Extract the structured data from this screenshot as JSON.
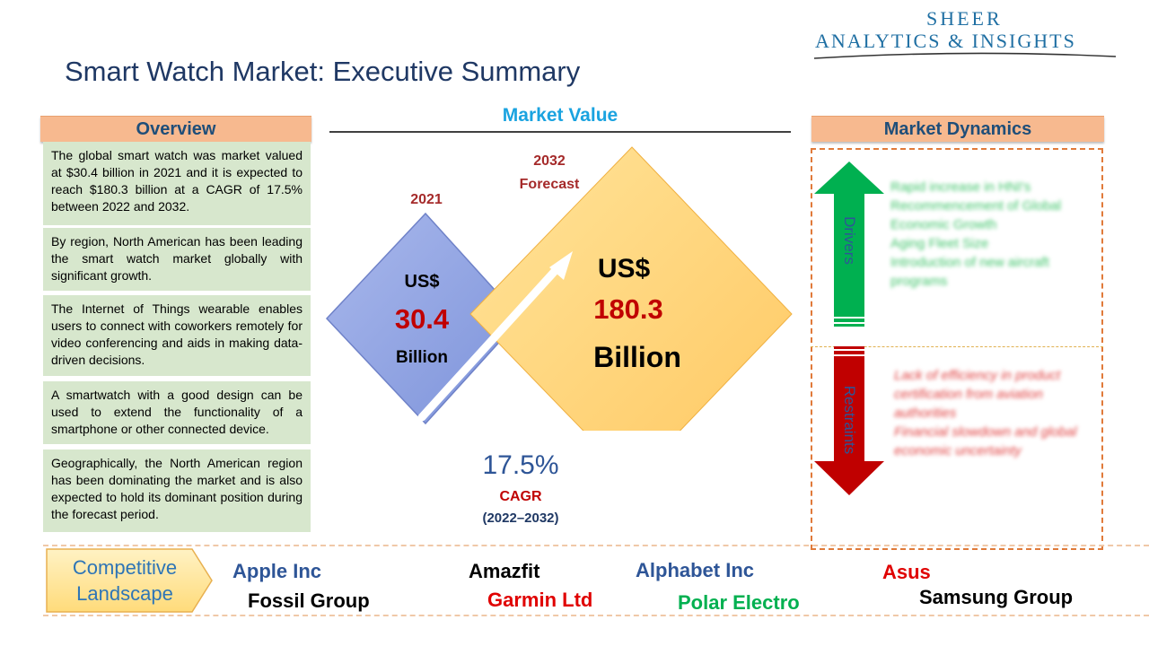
{
  "logo": {
    "line1": "SHEER",
    "line2": "ANALYTICS & INSIGHTS"
  },
  "title": "Smart Watch Market: Executive Summary",
  "overview": {
    "heading": "Overview",
    "paragraphs": [
      "The global smart watch was market valued at $30.4 billion in 2021 and it is expected to reach $180.3 billion at a CAGR of 17.5% between 2022 and 2032.",
      "By region, North American has been leading the smart watch market globally with significant growth.",
      "The Internet of Things wearable enables users to connect with coworkers remotely for video conferencing and aids in making data-driven decisions.",
      "A smartwatch with a good design can be used to extend the functionality of a smartphone or other connected device.",
      "Geographically, the North American region has been dominating the market and is also expected to hold its dominant position during the forecast period."
    ]
  },
  "market_value": {
    "heading": "Market Value",
    "y2021": {
      "label": "2021",
      "currency": "US$",
      "value": "30.4",
      "unit": "Billion"
    },
    "y2032": {
      "label_line1": "2032",
      "label_line2": "Forecast",
      "currency": "US$",
      "value": "180.3",
      "unit": "Billion"
    },
    "cagr": {
      "value": "17.5%",
      "label": "CAGR",
      "period": "(2022–2032)"
    }
  },
  "dynamics": {
    "heading": "Market Dynamics",
    "drivers_label": "Drivers",
    "restraints_label": "Restraints",
    "drivers": [
      "Rapid increase in HNI's",
      "Recommencement of Global Economic Growth",
      "Aging Fleet Size",
      "Introduction of new aircraft programs"
    ],
    "restraints": [
      "Lack of efficiency in product certification from aviation authorities",
      "Financial slowdown and global economic uncertainty"
    ],
    "colors": {
      "drivers": "#00b050",
      "restraints": "#c00000"
    }
  },
  "competitive": {
    "label_line1": "Competitive",
    "label_line2": "Landscape",
    "companies": [
      {
        "name": "Apple Inc",
        "color": "#2e5597"
      },
      {
        "name": "Amazfit",
        "color": "#000000"
      },
      {
        "name": "Alphabet Inc",
        "color": "#2e5597"
      },
      {
        "name": "Asus",
        "color": "#e00000"
      },
      {
        "name": "Fossil Group",
        "color": "#000000"
      },
      {
        "name": "Garmin Ltd",
        "color": "#e00000"
      },
      {
        "name": "Polar Electro",
        "color": "#00b050"
      },
      {
        "name": "Samsung Group",
        "color": "#000000"
      }
    ]
  }
}
